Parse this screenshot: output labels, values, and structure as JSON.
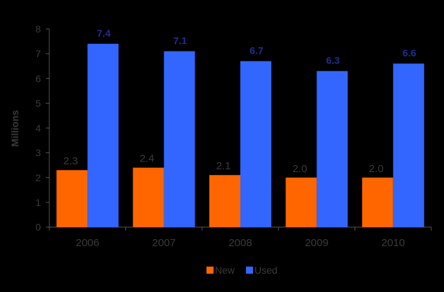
{
  "chart_data": {
    "type": "bar",
    "categories": [
      "2006",
      "2007",
      "2008",
      "2009",
      "2010"
    ],
    "series": [
      {
        "name": "New",
        "values": [
          2.3,
          2.4,
          2.1,
          2.0,
          2.0
        ],
        "labels": [
          "2.3",
          "2.4",
          "2.1",
          "2.0",
          "2.0"
        ],
        "color": "#ff6600"
      },
      {
        "name": "Used",
        "values": [
          7.4,
          7.1,
          6.7,
          6.3,
          6.6
        ],
        "labels": [
          "7.4",
          "7.1",
          "6.7",
          "6.3",
          "6.6"
        ],
        "color": "#3366ff"
      }
    ],
    "title": "",
    "xlabel": "",
    "ylabel": "Millions",
    "ylim": [
      0,
      8
    ],
    "yticks": [
      "0",
      "1",
      "2",
      "3",
      "4",
      "5",
      "6",
      "7",
      "8"
    ],
    "legend": "bottom",
    "grid": false,
    "background": "#000000",
    "axis_color": "#555555"
  }
}
